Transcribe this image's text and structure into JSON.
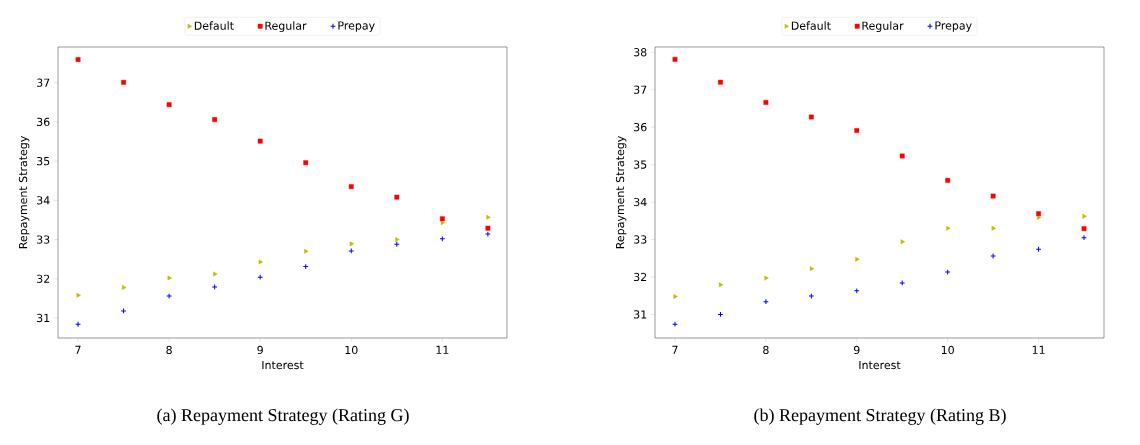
{
  "chart_data": [
    {
      "type": "scatter",
      "xlabel": "Interest",
      "ylabel": "Repayment Strategy",
      "x": [
        7,
        7.5,
        8,
        8.5,
        9,
        9.5,
        10,
        10.5,
        11,
        11.5
      ],
      "xlim": [
        6.78,
        11.71
      ],
      "ylim": [
        30.49,
        37.91
      ],
      "xticks": [
        7,
        8,
        9,
        10,
        11
      ],
      "yticks": [
        31,
        32,
        33,
        34,
        35,
        36,
        37
      ],
      "legend": "top",
      "grid": false,
      "annotations": [
        "(a) Repayment Strategy (Rating G)"
      ],
      "series": [
        {
          "name": "Default",
          "color": "#bfbf00",
          "marker": "triangle",
          "values": [
            31.58,
            31.78,
            32.02,
            32.12,
            32.43,
            32.7,
            32.89,
            33.0,
            33.43,
            33.57
          ]
        },
        {
          "name": "Regular",
          "color": "#ff0000",
          "marker": "square",
          "values": [
            37.59,
            37.01,
            36.44,
            36.06,
            35.51,
            34.96,
            34.35,
            34.08,
            33.53,
            33.29
          ]
        },
        {
          "name": "Prepay",
          "color": "#0000ff",
          "marker": "cross",
          "values": [
            30.84,
            31.18,
            31.56,
            31.79,
            32.04,
            32.31,
            32.71,
            32.88,
            33.02,
            33.14
          ]
        }
      ]
    },
    {
      "type": "scatter",
      "xlabel": "Interest",
      "ylabel": "Repayment Strategy",
      "x": [
        7,
        7.5,
        8,
        8.5,
        9,
        9.5,
        10,
        10.5,
        11,
        11.5
      ],
      "xlim": [
        6.78,
        11.72
      ],
      "ylim": [
        30.37,
        38.14
      ],
      "xticks": [
        7,
        8,
        9,
        10,
        11
      ],
      "yticks": [
        31,
        32,
        33,
        34,
        35,
        36,
        37,
        38
      ],
      "legend": "top",
      "grid": false,
      "annotations": [
        "(b) Repayment Strategy (Rating B)"
      ],
      "series": [
        {
          "name": "Default",
          "color": "#bfbf00",
          "marker": "triangle",
          "values": [
            31.48,
            31.79,
            31.97,
            32.22,
            32.47,
            32.94,
            33.3,
            33.3,
            33.59,
            33.62
          ]
        },
        {
          "name": "Regular",
          "color": "#ff0000",
          "marker": "square",
          "values": [
            37.81,
            37.2,
            36.66,
            36.27,
            35.91,
            35.23,
            34.58,
            34.16,
            33.69,
            33.29
          ]
        },
        {
          "name": "Prepay",
          "color": "#0000ff",
          "marker": "cross",
          "values": [
            30.74,
            31.0,
            31.34,
            31.49,
            31.63,
            31.84,
            32.13,
            32.56,
            32.74,
            33.05
          ]
        }
      ]
    }
  ]
}
